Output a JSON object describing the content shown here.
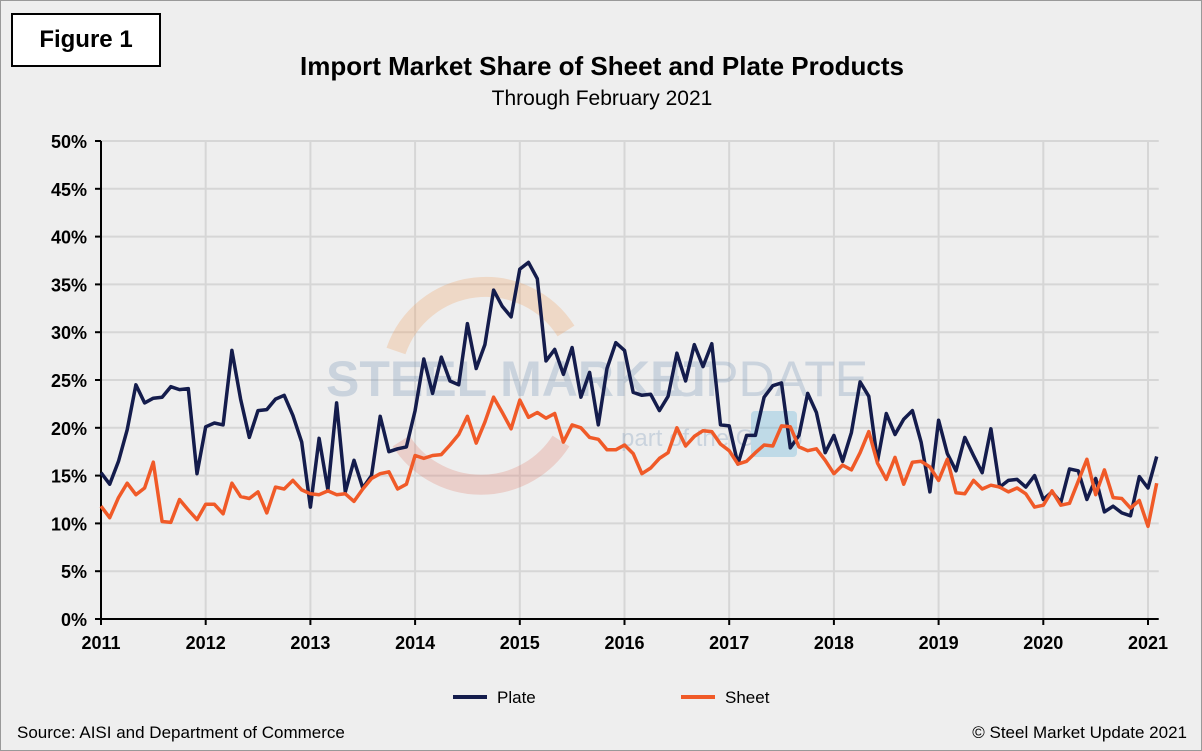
{
  "figure_label": "Figure 1",
  "source": "Source: AISI and Department of Commerce",
  "copyright": "© Steel Market Update 2021",
  "watermark": {
    "main": "STEEL MARKET UPDATE",
    "sub": "part of the CRU Group"
  },
  "chart_data": {
    "type": "line",
    "title": "Import Market Share of Sheet and Plate Products",
    "subtitle": "Through February 2021",
    "xlabel": "",
    "ylabel": "",
    "x_start": "2011-01",
    "x_end": "2021-02",
    "frequency": "monthly",
    "x_ticks": [
      "2011",
      "2012",
      "2013",
      "2014",
      "2015",
      "2016",
      "2017",
      "2018",
      "2019",
      "2020",
      "2021"
    ],
    "y_ticks": [
      "0%",
      "5%",
      "10%",
      "15%",
      "20%",
      "25%",
      "30%",
      "35%",
      "40%",
      "45%",
      "50%"
    ],
    "ylim": [
      0,
      50
    ],
    "grid": true,
    "legend": "bottom",
    "series": [
      {
        "name": "Plate",
        "color": "#141c4c",
        "values": [
          15.3,
          14.1,
          16.5,
          19.8,
          24.5,
          22.6,
          23.1,
          23.2,
          24.3,
          24.0,
          24.1,
          15.2,
          20.1,
          20.5,
          20.3,
          28.1,
          23.0,
          19.0,
          21.8,
          21.9,
          23.0,
          23.4,
          21.3,
          18.5,
          11.7,
          18.9,
          13.5,
          22.6,
          13.3,
          16.6,
          13.7,
          15.0,
          21.2,
          17.5,
          17.8,
          18.0,
          21.8,
          27.2,
          23.6,
          27.4,
          24.9,
          24.5,
          30.9,
          26.2,
          28.7,
          34.4,
          32.7,
          31.6,
          36.6,
          37.3,
          35.6,
          27.0,
          28.2,
          25.6,
          28.4,
          23.2,
          25.8,
          20.3,
          26.2,
          28.9,
          28.1,
          23.7,
          23.4,
          23.5,
          21.8,
          23.3,
          27.8,
          24.9,
          28.7,
          26.4,
          28.8,
          20.3,
          20.2,
          16.2,
          19.2,
          19.2,
          23.2,
          24.4,
          24.7,
          17.9,
          19.2,
          23.6,
          21.6,
          17.4,
          19.2,
          16.5,
          19.5,
          24.8,
          23.3,
          16.5,
          21.5,
          19.3,
          20.9,
          21.8,
          18.5,
          13.3,
          20.8,
          17.3,
          15.5,
          19.0,
          17.1,
          15.3,
          19.9,
          13.8,
          14.5,
          14.6,
          13.8,
          15.0,
          12.5,
          13.3,
          12.2,
          15.7,
          15.5,
          12.5,
          14.7,
          11.2,
          11.8,
          11.1,
          10.8,
          14.9,
          13.7,
          17.0
        ]
      },
      {
        "name": "Sheet",
        "color": "#f05a28",
        "values": [
          11.8,
          10.6,
          12.7,
          14.2,
          13.0,
          13.7,
          16.4,
          10.2,
          10.1,
          12.5,
          11.4,
          10.4,
          12.0,
          12.0,
          11.0,
          14.2,
          12.8,
          12.6,
          13.3,
          11.1,
          13.8,
          13.6,
          14.5,
          13.5,
          13.1,
          13.0,
          13.4,
          13.0,
          13.1,
          12.3,
          13.6,
          14.7,
          15.2,
          15.4,
          13.6,
          14.1,
          17.1,
          16.8,
          17.1,
          17.2,
          18.2,
          19.3,
          21.2,
          18.4,
          20.6,
          23.2,
          21.6,
          19.9,
          22.9,
          21.1,
          21.6,
          21.0,
          21.5,
          18.5,
          20.3,
          20.0,
          19.0,
          18.8,
          17.7,
          17.7,
          18.2,
          17.3,
          15.2,
          15.8,
          16.8,
          17.4,
          20.0,
          18.1,
          19.1,
          19.7,
          19.6,
          18.3,
          17.6,
          16.2,
          16.5,
          17.4,
          18.2,
          18.1,
          20.2,
          20.1,
          18.0,
          17.6,
          17.8,
          16.6,
          15.2,
          16.1,
          15.6,
          17.4,
          19.6,
          16.3,
          14.6,
          16.9,
          14.1,
          16.4,
          16.5,
          15.9,
          14.5,
          16.7,
          13.2,
          13.1,
          14.5,
          13.6,
          14.0,
          13.8,
          13.3,
          13.7,
          13.1,
          11.7,
          11.9,
          13.4,
          11.9,
          12.1,
          14.4,
          16.7,
          13.0,
          15.6,
          12.7,
          12.6,
          11.6,
          12.4,
          9.7,
          14.2
        ]
      }
    ]
  }
}
